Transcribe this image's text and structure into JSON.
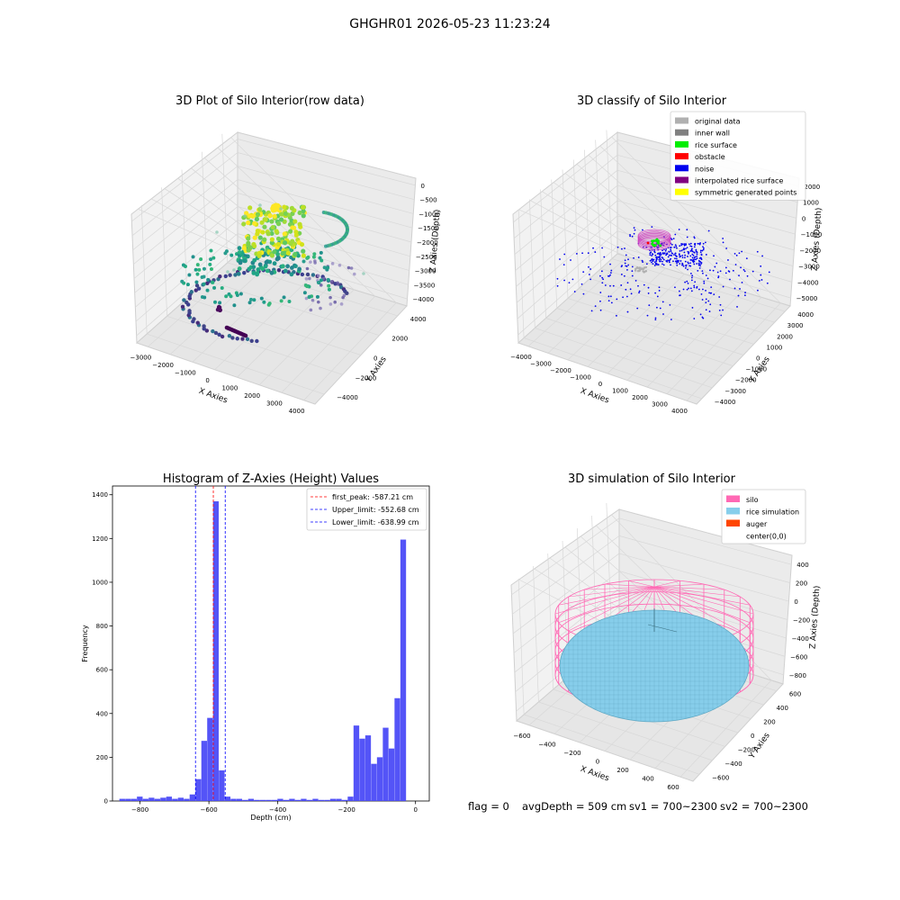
{
  "suptitle": "GHGHR01 2026-05-23 11:23:24",
  "status_line": {
    "flag": "flag = 0",
    "avg_depth": "avgDepth = 509 cm",
    "sv1": "sv1 = 700~2300",
    "sv2": "sv2 = 700~2300"
  },
  "chart_data": [
    {
      "type": "scatter",
      "projection": "3d",
      "title": "3D Plot of Silo Interior(row data)",
      "xlabel": "X Axies",
      "ylabel": "Y Axies",
      "zlabel": "Z Axies (Depth)",
      "xticks": [
        "−3000",
        "−2000",
        "−1000",
        "0",
        "1000",
        "2000",
        "3000",
        "4000"
      ],
      "yticks": [
        "−4000",
        "−2000",
        "0",
        "2000",
        "4000"
      ],
      "zticks": [
        "0",
        "−500",
        "−1000",
        "−1500",
        "−2000",
        "−2500",
        "−3000",
        "−3500",
        "−4000"
      ],
      "colormap": "viridis (color by depth)",
      "point_groups": [
        {
          "description": "rice surface mound near top",
          "z_range": [
            -900,
            -1500
          ],
          "color": "#c8e020"
        },
        {
          "description": "mid ring",
          "z_range": [
            -1800,
            -2600
          ],
          "color": "#2a9d8f"
        },
        {
          "description": "outer low ring",
          "z_range": [
            -3500,
            -4000
          ],
          "color": "#3b3f8f"
        },
        {
          "description": "bottom cluster",
          "z_range": [
            -3900,
            -4100
          ],
          "color": "#4b0c5f"
        }
      ]
    },
    {
      "type": "scatter",
      "projection": "3d",
      "title": "3D classify of Silo Interior",
      "xlabel": "X Axies",
      "ylabel": "Y Axies",
      "zlabel": "Z Axies (Depth)",
      "xticks": [
        "−4000",
        "−3000",
        "−2000",
        "−1000",
        "0",
        "1000",
        "2000",
        "3000",
        "4000"
      ],
      "yticks": [
        "−4000",
        "−3000",
        "−2000",
        "−1000",
        "0",
        "1000",
        "2000",
        "3000",
        "4000"
      ],
      "zticks": [
        "2000",
        "1000",
        "0",
        "−1000",
        "−2000",
        "−3000",
        "−4000",
        "−5000"
      ],
      "legend": [
        {
          "label": "original data",
          "color": "#b0b0b0"
        },
        {
          "label": "inner wall",
          "color": "#808080"
        },
        {
          "label": "rice surface",
          "color": "#00ee00"
        },
        {
          "label": "obstacle",
          "color": "#ff0000"
        },
        {
          "label": "noise",
          "color": "#0000ee"
        },
        {
          "label": "interpolated rice surface",
          "color": "#800080"
        },
        {
          "label": "symmetric generated points",
          "color": "#ffff00"
        }
      ],
      "legend_position": "upper right"
    },
    {
      "type": "bar",
      "title": "Histogram of Z-Axies (Height) Values",
      "xlabel": "Depth (cm)",
      "ylabel": "Frequency",
      "xlim": [
        -880,
        40
      ],
      "ylim": [
        0,
        1440
      ],
      "xticks": [
        -800,
        -600,
        -400,
        -200,
        0
      ],
      "yticks": [
        0,
        200,
        400,
        600,
        800,
        1000,
        1200,
        1400
      ],
      "bin_width": 17,
      "bin_start": -860,
      "values": [
        10,
        10,
        10,
        20,
        10,
        15,
        10,
        15,
        20,
        10,
        15,
        10,
        30,
        100,
        275,
        380,
        1370,
        140,
        20,
        10,
        10,
        5,
        10,
        5,
        5,
        5,
        5,
        10,
        5,
        10,
        5,
        10,
        5,
        10,
        5,
        5,
        10,
        10,
        5,
        20,
        345,
        285,
        300,
        170,
        200,
        335,
        240,
        470,
        1195
      ],
      "bar_color": "#4b4bf7",
      "vlines": [
        {
          "label": "first_peak: -587.21 cm",
          "x": -587.21,
          "color": "#ff0000"
        },
        {
          "label": "Upper_limit: -552.68 cm",
          "x": -552.68,
          "color": "#0000ff"
        },
        {
          "label": "Lower_limit: -638.99 cm",
          "x": -638.99,
          "color": "#0000ff"
        }
      ],
      "legend_position": "upper right"
    },
    {
      "type": "surface",
      "projection": "3d",
      "title": "3D simulation of Silo Interior",
      "xlabel": "X Axies",
      "ylabel": "Y Axies",
      "zlabel": "Z Axies (Depth)",
      "xticks": [
        "−600",
        "−400",
        "−200",
        "0",
        "200",
        "400",
        "600"
      ],
      "yticks": [
        "−600",
        "−400",
        "−200",
        "0",
        "200",
        "400",
        "600"
      ],
      "zticks": [
        "400",
        "200",
        "0",
        "−200",
        "−400",
        "−600",
        "−800"
      ],
      "legend": [
        {
          "label": "silo",
          "color": "#ff69b4"
        },
        {
          "label": "rice simulation",
          "color": "#87ceeb"
        },
        {
          "label": "auger",
          "color": "#ff4500"
        },
        {
          "label": "center(0,0)",
          "color": "#ffffff"
        }
      ],
      "legend_position": "upper right"
    }
  ]
}
